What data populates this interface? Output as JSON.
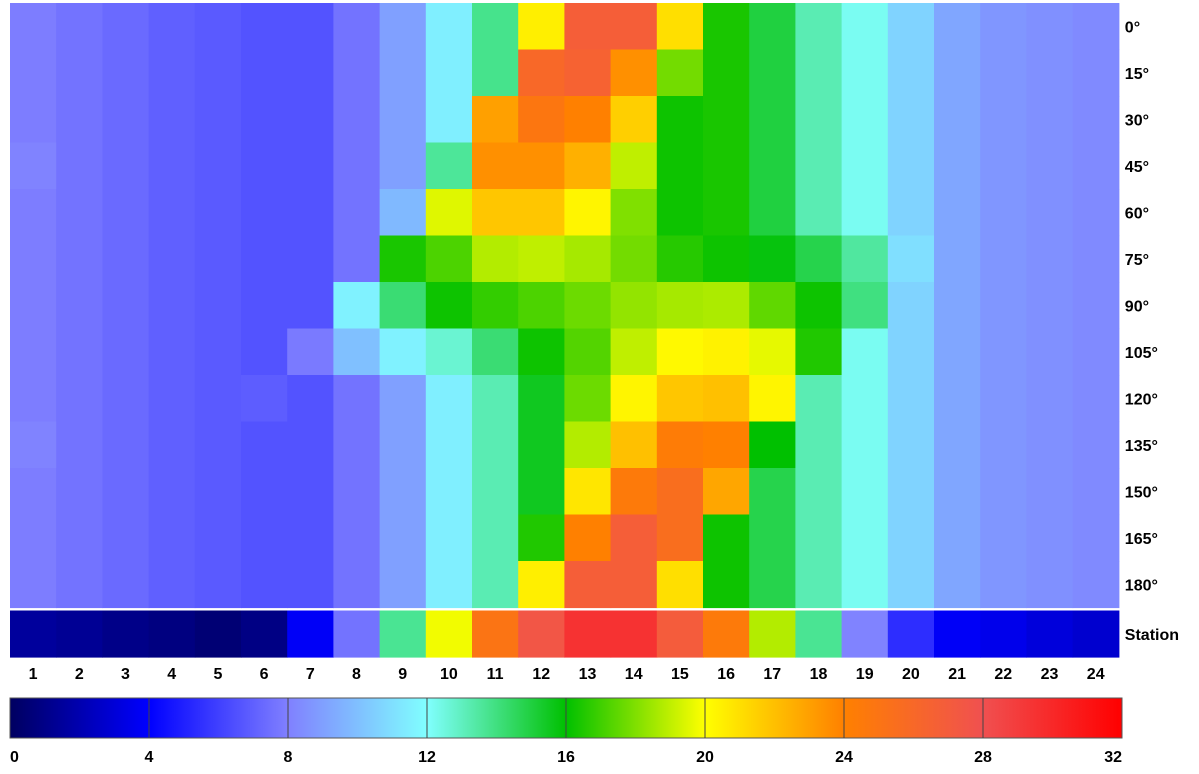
{
  "chart_data": {
    "type": "heatmap",
    "columns": [
      "1",
      "2",
      "3",
      "4",
      "5",
      "6",
      "7",
      "8",
      "9",
      "10",
      "11",
      "12",
      "13",
      "14",
      "15",
      "16",
      "17",
      "18",
      "19",
      "20",
      "21",
      "22",
      "23",
      "24"
    ],
    "rows": [
      "0°",
      "15°",
      "30°",
      "45°",
      "60°",
      "75°",
      "90°",
      "105°",
      "120°",
      "135°",
      "150°",
      "165°",
      "180°",
      "Station"
    ],
    "values": [
      [
        7.9,
        7.6,
        7.3,
        7.0,
        6.8,
        6.6,
        6.6,
        7.6,
        9.0,
        11.5,
        13.8,
        20.5,
        26.8,
        26.8,
        21.0,
        16.4,
        15.0,
        13.2,
        12.2,
        10.6,
        9.2,
        8.7,
        8.5,
        8.3
      ],
      [
        7.9,
        7.6,
        7.3,
        7.0,
        6.8,
        6.6,
        6.6,
        7.6,
        9.0,
        11.5,
        13.8,
        26.0,
        26.5,
        23.5,
        17.8,
        16.4,
        15.0,
        13.2,
        12.2,
        10.6,
        9.2,
        8.7,
        8.5,
        8.3
      ],
      [
        7.9,
        7.6,
        7.3,
        7.0,
        6.8,
        6.6,
        6.6,
        7.6,
        9.0,
        11.5,
        23.0,
        24.8,
        24.0,
        21.5,
        16.2,
        16.4,
        15.0,
        13.2,
        12.2,
        10.6,
        9.2,
        8.7,
        8.5,
        8.3
      ],
      [
        8.1,
        7.6,
        7.3,
        7.0,
        6.8,
        6.6,
        6.6,
        7.6,
        9.0,
        13.6,
        23.5,
        23.5,
        22.5,
        19.0,
        16.2,
        16.4,
        15.0,
        13.2,
        12.2,
        10.6,
        9.2,
        8.7,
        8.5,
        8.3
      ],
      [
        7.9,
        7.6,
        7.3,
        7.0,
        6.8,
        6.6,
        6.6,
        7.6,
        9.8,
        19.5,
        21.8,
        21.8,
        20.3,
        18.0,
        16.2,
        16.4,
        15.0,
        13.2,
        12.2,
        10.6,
        9.2,
        8.7,
        8.5,
        8.3
      ],
      [
        7.9,
        7.6,
        7.3,
        7.0,
        6.8,
        6.6,
        6.6,
        7.6,
        16.4,
        17.2,
        18.8,
        19.0,
        18.6,
        17.8,
        16.6,
        16.2,
        15.8,
        14.8,
        13.5,
        11.0,
        9.2,
        8.7,
        8.5,
        8.3
      ],
      [
        7.9,
        7.6,
        7.3,
        7.0,
        6.8,
        6.6,
        6.6,
        11.6,
        14.2,
        16.2,
        16.8,
        17.2,
        17.7,
        18.3,
        18.6,
        18.7,
        17.5,
        16.2,
        14.0,
        10.6,
        9.2,
        8.7,
        8.5,
        8.3
      ],
      [
        7.9,
        7.6,
        7.3,
        7.0,
        6.8,
        6.6,
        7.8,
        10.0,
        11.6,
        12.7,
        14.2,
        16.2,
        17.3,
        19.0,
        20.2,
        20.4,
        19.6,
        16.5,
        12.2,
        10.6,
        9.2,
        8.7,
        8.5,
        8.3
      ],
      [
        7.9,
        7.6,
        7.3,
        7.0,
        6.8,
        6.9,
        6.6,
        7.6,
        9.0,
        11.5,
        13.2,
        15.5,
        17.7,
        20.3,
        21.8,
        22.0,
        20.3,
        13.2,
        12.2,
        10.6,
        9.2,
        8.7,
        8.5,
        8.3
      ],
      [
        8.1,
        7.6,
        7.3,
        7.0,
        6.8,
        6.6,
        6.6,
        7.6,
        9.0,
        11.5,
        13.2,
        15.5,
        18.8,
        22.0,
        24.3,
        24.0,
        16.0,
        13.2,
        12.2,
        10.6,
        9.2,
        8.7,
        8.5,
        8.3
      ],
      [
        7.9,
        7.6,
        7.3,
        7.0,
        6.8,
        6.6,
        6.6,
        7.6,
        9.0,
        11.5,
        13.2,
        15.5,
        20.8,
        24.5,
        25.5,
        22.8,
        14.8,
        13.2,
        12.2,
        10.6,
        9.2,
        8.7,
        8.5,
        8.3
      ],
      [
        7.9,
        7.6,
        7.3,
        7.0,
        6.8,
        6.6,
        6.6,
        7.6,
        9.0,
        11.5,
        13.2,
        16.5,
        24.0,
        26.8,
        25.5,
        16.2,
        14.8,
        13.2,
        12.2,
        10.6,
        9.2,
        8.7,
        8.5,
        8.3
      ],
      [
        7.9,
        7.6,
        7.3,
        7.0,
        6.8,
        6.6,
        6.6,
        7.6,
        9.0,
        11.5,
        13.2,
        20.5,
        26.8,
        26.8,
        21.0,
        16.2,
        14.8,
        13.2,
        12.2,
        10.6,
        9.2,
        8.7,
        8.5,
        8.3
      ],
      [
        1.5,
        1.3,
        1.0,
        0.8,
        0.5,
        0.9,
        3.8,
        7.6,
        13.7,
        19.8,
        25.0,
        27.5,
        29.5,
        29.5,
        27.0,
        24.5,
        18.8,
        13.7,
        8.1,
        5.4,
        3.8,
        3.5,
        3.1,
        2.8
      ]
    ],
    "colorbar": {
      "min": 0,
      "max": 32,
      "ticks": [
        0,
        4,
        8,
        12,
        16,
        20,
        24,
        28,
        32
      ],
      "stops": [
        {
          "v": 0,
          "c": "#000060"
        },
        {
          "v": 4,
          "c": "#0000ff"
        },
        {
          "v": 8,
          "c": "#8080ff"
        },
        {
          "v": 12,
          "c": "#80ffff"
        },
        {
          "v": 16,
          "c": "#00c000"
        },
        {
          "v": 20,
          "c": "#ffff00"
        },
        {
          "v": 24,
          "c": "#ff8000"
        },
        {
          "v": 28,
          "c": "#f05050"
        },
        {
          "v": 32,
          "c": "#ff0000"
        }
      ]
    }
  }
}
